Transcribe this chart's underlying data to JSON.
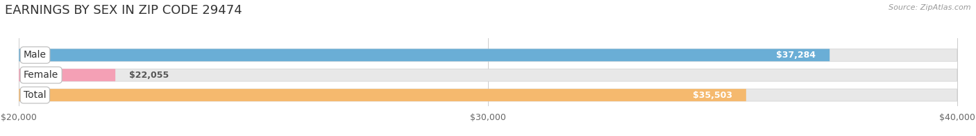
{
  "title": "EARNINGS BY SEX IN ZIP CODE 29474",
  "source": "Source: ZipAtlas.com",
  "categories": [
    "Male",
    "Female",
    "Total"
  ],
  "values": [
    37284,
    22055,
    35503
  ],
  "bar_colors": [
    "#6aaed6",
    "#f4a0b5",
    "#f5b96e"
  ],
  "bar_labels": [
    "$37,284",
    "$22,055",
    "$35,503"
  ],
  "xlim": [
    20000,
    40000
  ],
  "xticks": [
    20000,
    30000,
    40000
  ],
  "xtick_labels": [
    "$20,000",
    "$30,000",
    "$40,000"
  ],
  "background_color": "#ffffff",
  "bar_bg_color": "#e8e8e8",
  "title_fontsize": 13,
  "tick_fontsize": 9,
  "bar_label_fontsize": 9,
  "cat_label_fontsize": 10
}
